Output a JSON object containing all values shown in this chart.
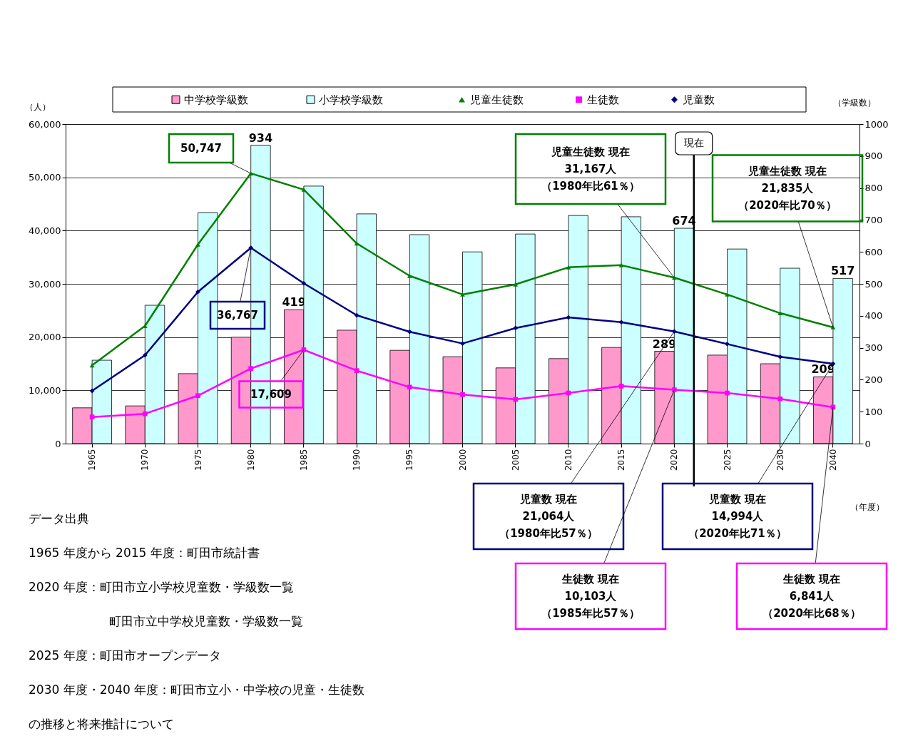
{
  "chart_data": {
    "type": "bar",
    "categories": [
      "1965",
      "1970",
      "1975",
      "1980",
      "1985",
      "1990",
      "1995",
      "2000",
      "2005",
      "2010",
      "2015",
      "2020",
      "2025",
      "2030",
      "2040"
    ],
    "series": [
      {
        "name": "中学校学級数",
        "axis": "y2",
        "color": "#ff99cc",
        "values": [
          112,
          118,
          219,
          333,
          419,
          355,
          292,
          272,
          237,
          266,
          301,
          289,
          277,
          250,
          209
        ],
        "value_labels": [
          null,
          null,
          null,
          null,
          "419",
          null,
          null,
          null,
          null,
          null,
          null,
          "289",
          null,
          null,
          "209"
        ]
      },
      {
        "name": "小学校学級数",
        "axis": "y2",
        "color": "#ccffff",
        "values": [
          261,
          433,
          723,
          934,
          806,
          719,
          654,
          600,
          656,
          714,
          710,
          674,
          609,
          549,
          517
        ],
        "value_labels": [
          null,
          null,
          null,
          "934",
          null,
          null,
          null,
          null,
          null,
          null,
          null,
          "674",
          null,
          null,
          "517"
        ]
      },
      {
        "name": "児童生徒数",
        "type": "line",
        "axis": "y",
        "color": "#008000",
        "marker": "triangle",
        "values": [
          14700,
          22100,
          37400,
          50747,
          47700,
          37600,
          31500,
          28000,
          29900,
          33100,
          33500,
          31167,
          28000,
          24500,
          21835
        ]
      },
      {
        "name": "生徒数",
        "type": "line",
        "axis": "y",
        "color": "#ff00ff",
        "marker": "square",
        "values": [
          5000,
          5600,
          9000,
          14100,
          17609,
          13700,
          10600,
          9200,
          8300,
          9500,
          10800,
          10103,
          9500,
          8400,
          6841
        ]
      },
      {
        "name": "児童数",
        "type": "line",
        "axis": "y",
        "color": "#000080",
        "marker": "diamond",
        "values": [
          9900,
          16600,
          28500,
          36767,
          30100,
          24100,
          21000,
          18800,
          21700,
          23700,
          22800,
          21064,
          18700,
          16300,
          14994
        ]
      }
    ],
    "ylabel": "（人）",
    "y2label": "（学級数）",
    "xlabel": "（年度）",
    "ylim": [
      0,
      60000
    ],
    "yticks": [
      0,
      {
        "value": 10000,
        "label": "10,000"
      },
      {
        "value": 20000,
        "label": "20,000"
      },
      {
        "value": 30000,
        "label": "30,000"
      },
      {
        "value": 40000,
        "label": "40,000"
      },
      {
        "value": 50000,
        "label": "50,000"
      },
      {
        "value": 60000,
        "label": "60,000"
      }
    ],
    "y2lim": [
      0,
      1000
    ],
    "y2ticks": [
      0,
      100,
      200,
      300,
      400,
      500,
      600,
      700,
      800,
      900,
      1000
    ],
    "grid": "y",
    "legend": "top",
    "line_style": "solid",
    "ref_lines": [
      {
        "axis": "x",
        "value": "2020",
        "label": "現在"
      }
    ],
    "annotations": [
      {
        "text": "50,747",
        "x": "1980",
        "y": 50747
      },
      {
        "text": "36,767",
        "x": "1980",
        "y": 36767
      },
      {
        "text": "17,609",
        "x": "1985",
        "y": 17609
      },
      {
        "text": "児童生徒数 現在31,167人（1980年比61％）",
        "x": "2020",
        "y": 31167
      },
      {
        "text": "児童生徒数 現在21,835人（2020年比70％）",
        "x": "2040",
        "y": 21835
      },
      {
        "text": "児童数 現在21,064人（1980年比57％）",
        "x": "2020",
        "y": 21064
      },
      {
        "text": "児童数 現在14,994人（2020年比71％）",
        "x": "2040",
        "y": 14994
      },
      {
        "text": "生徒数 現在10,103人（1985年比57％）",
        "x": "2020",
        "y": 10103
      },
      {
        "text": "生徒数 現在6,841人（2020年比68％）",
        "x": "2040",
        "y": 6841
      },
      "データ出典",
      "1965 年度から 2015 年度：町田市統計書",
      "2020 年度：町田市立小学校児童数・学級数一覧",
      "町田市立中学校児童数・学級数一覧",
      "2025 年度：町田市オープンデータ",
      "2030 年度・2040 年度：町田市立小・中学校の児童・生徒数",
      "の推移と将来推計について"
    ]
  }
}
